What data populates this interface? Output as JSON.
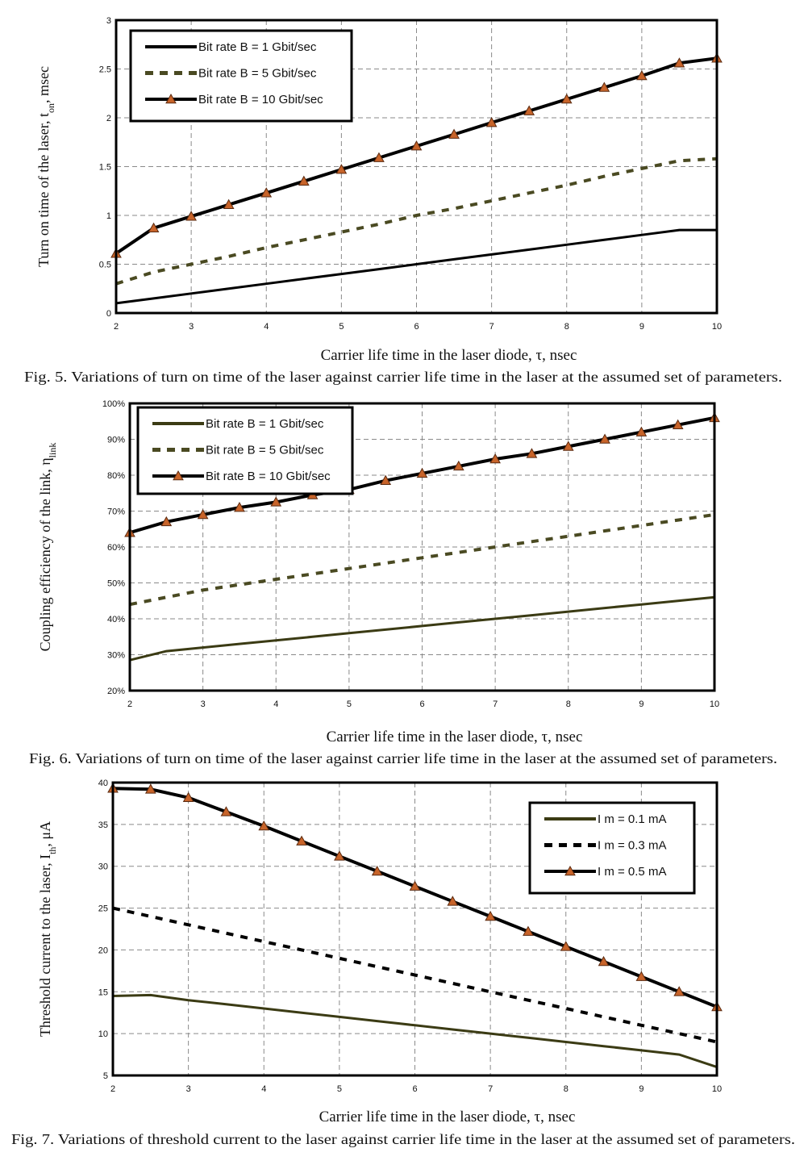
{
  "figures": [
    {
      "caption": "Fig. 5. Variations of turn on time of the laser against carrier life time in the laser at the assumed set of parameters.",
      "chart_data": {
        "type": "line",
        "ylabel": "Turn on time of the laser, t",
        "ylabel_sub": "on",
        "ylabel_tail": ", msec",
        "xlabel": "Carrier life time in the laser diode, τ, nsec",
        "xlim": [
          2,
          10
        ],
        "ylim": [
          0,
          3
        ],
        "xticks": [
          2,
          3,
          4,
          5,
          6,
          7,
          8,
          9,
          10
        ],
        "yticks": [
          0,
          0.5,
          1,
          1.5,
          2,
          2.5,
          3
        ],
        "ytick_labels": [
          "0",
          "0.5",
          "1",
          "1.5",
          "2",
          "2.5",
          "3"
        ],
        "grid": true,
        "legend_position": "top-left",
        "series": [
          {
            "name": "Bit rate B = 1 Gbit/sec",
            "style": "solid",
            "color": "#000000",
            "x": [
              2,
              2.5,
              3,
              3.5,
              4,
              4.5,
              5,
              5.5,
              6,
              6.5,
              7,
              7.5,
              8,
              8.5,
              9,
              9.5,
              10
            ],
            "y": [
              0.1,
              0.15,
              0.2,
              0.25,
              0.3,
              0.35,
              0.4,
              0.45,
              0.5,
              0.55,
              0.6,
              0.65,
              0.7,
              0.75,
              0.8,
              0.85,
              0.85
            ]
          },
          {
            "name": "Bit rate B = 5 Gbit/sec",
            "style": "dashed",
            "color": "#4a4a22",
            "x": [
              2,
              2.5,
              3,
              3.5,
              4,
              4.5,
              5,
              5.5,
              6,
              6.5,
              7,
              7.5,
              8,
              8.5,
              9,
              9.5,
              10
            ],
            "y": [
              0.3,
              0.42,
              0.5,
              0.58,
              0.67,
              0.75,
              0.83,
              0.91,
              1.0,
              1.07,
              1.15,
              1.23,
              1.31,
              1.4,
              1.48,
              1.56,
              1.58
            ]
          },
          {
            "name": "Bit rate B = 10 Gbit/sec",
            "style": "triangle",
            "color": "#000000",
            "x": [
              2,
              2.5,
              3,
              3.5,
              4,
              4.5,
              5,
              5.5,
              6,
              6.5,
              7,
              7.5,
              8,
              8.5,
              9,
              9.5,
              10
            ],
            "y": [
              0.61,
              0.87,
              0.99,
              1.11,
              1.23,
              1.35,
              1.47,
              1.59,
              1.71,
              1.83,
              1.95,
              2.07,
              2.19,
              2.31,
              2.43,
              2.56,
              2.61
            ]
          }
        ]
      }
    },
    {
      "caption": "Fig. 6. Variations of turn on time of the laser against carrier life time in the laser at the assumed set of parameters.",
      "chart_data": {
        "type": "line",
        "ylabel": "Coupling efficiency of the link, η",
        "ylabel_sub": "link",
        "ylabel_tail": "",
        "xlabel": "Carrier life time in the laser diode, τ, nsec",
        "xlim": [
          2,
          10
        ],
        "ylim": [
          20,
          100
        ],
        "xticks": [
          2,
          3,
          4,
          5,
          6,
          7,
          8,
          9,
          10
        ],
        "yticks": [
          20,
          30,
          40,
          50,
          60,
          70,
          80,
          90,
          100
        ],
        "ytick_labels": [
          "20%",
          "30%",
          "40%",
          "50%",
          "60%",
          "70%",
          "80%",
          "90%",
          "100%"
        ],
        "grid": true,
        "legend_position": "top-left",
        "series": [
          {
            "name": "Bit rate B = 1 Gbit/sec",
            "style": "solid",
            "color": "#3b3b14",
            "x": [
              2,
              2.5,
              3,
              3.5,
              4,
              4.5,
              5,
              5.5,
              6,
              6.5,
              7,
              7.5,
              8,
              8.5,
              9,
              9.5,
              10
            ],
            "y": [
              28.5,
              31,
              32,
              33,
              34,
              35,
              36,
              37,
              38,
              39,
              40,
              41,
              42,
              43,
              44,
              45,
              46
            ]
          },
          {
            "name": "Bit rate B = 5 Gbit/sec",
            "style": "dashed",
            "color": "#4a4a22",
            "x": [
              2,
              2.5,
              3,
              3.5,
              4,
              4.5,
              5,
              5.5,
              6,
              6.5,
              7,
              7.5,
              8,
              8.5,
              9,
              9.5,
              10
            ],
            "y": [
              44,
              46,
              48,
              49.5,
              51,
              52.5,
              54,
              55.5,
              57,
              58.5,
              60,
              61.5,
              63,
              64.5,
              66,
              67.5,
              69
            ]
          },
          {
            "name": "Bit rate B = 10 Gbit/sec",
            "style": "triangle",
            "color": "#000000",
            "x": [
              2,
              2.5,
              3,
              3.5,
              4,
              4.5,
              5,
              5.5,
              6,
              6.5,
              7,
              7.5,
              8,
              8.5,
              9,
              9.5,
              10
            ],
            "y": [
              64,
              67,
              69,
              71,
              72.5,
              74.5,
              76,
              78.5,
              80.5,
              82.5,
              84.5,
              86,
              88,
              90,
              92,
              94,
              96
            ]
          }
        ]
      }
    },
    {
      "caption": "Fig. 7. Variations of threshold current to the laser against carrier life time in the laser at the assumed set of parameters.",
      "chart_data": {
        "type": "line",
        "ylabel": "Threshold current to the laser, I",
        "ylabel_sub": "th",
        "ylabel_tail": ", μA",
        "xlabel": "Carrier life time in the laser diode, τ, nsec",
        "xlim": [
          2,
          10
        ],
        "ylim": [
          5,
          40
        ],
        "xticks": [
          2,
          3,
          4,
          5,
          6,
          7,
          8,
          9,
          10
        ],
        "yticks": [
          5,
          10,
          15,
          20,
          25,
          30,
          35,
          40
        ],
        "ytick_labels": [
          "5",
          "10",
          "15",
          "20",
          "25",
          "30",
          "35",
          "40"
        ],
        "grid": true,
        "legend_position": "top-right",
        "series": [
          {
            "name": "I m = 0.1 mA",
            "style": "solid",
            "color": "#3b3b14",
            "x": [
              2,
              2.5,
              3,
              3.5,
              4,
              4.5,
              5,
              5.5,
              6,
              6.5,
              7,
              7.5,
              8,
              8.5,
              9,
              9.5,
              10
            ],
            "y": [
              14.5,
              14.6,
              14,
              13.5,
              13,
              12.5,
              12,
              11.5,
              11,
              10.5,
              10,
              9.5,
              9,
              8.5,
              8,
              7.5,
              6
            ]
          },
          {
            "name": "I m = 0.3 mA",
            "style": "dashed",
            "color": "#000000",
            "x": [
              2,
              2.5,
              3,
              3.5,
              4,
              4.5,
              5,
              5.5,
              6,
              6.5,
              7,
              7.5,
              8,
              8.5,
              9,
              9.5,
              10
            ],
            "y": [
              25,
              24,
              23,
              22,
              21,
              20,
              19,
              18,
              17,
              16,
              15,
              14,
              13,
              12,
              11,
              10,
              9
            ]
          },
          {
            "name": "I m = 0.5 mA",
            "style": "triangle",
            "color": "#000000",
            "x": [
              2,
              2.5,
              3,
              3.5,
              4,
              4.5,
              5,
              5.5,
              6,
              6.5,
              7,
              7.5,
              8,
              8.5,
              9,
              9.5,
              10
            ],
            "y": [
              39.3,
              39.2,
              38.2,
              36.5,
              34.8,
              33,
              31.2,
              29.4,
              27.6,
              25.8,
              24,
              22.2,
              20.4,
              18.6,
              16.8,
              15,
              13.2
            ]
          }
        ]
      }
    }
  ],
  "colors": {
    "axis": "#000000",
    "grid": "#8a8a8a",
    "marker_fill": "#c8642a",
    "marker_stroke": "#5a2a10",
    "dashed_olive": "#4a4a22",
    "solid_olive": "#3b3b14"
  }
}
